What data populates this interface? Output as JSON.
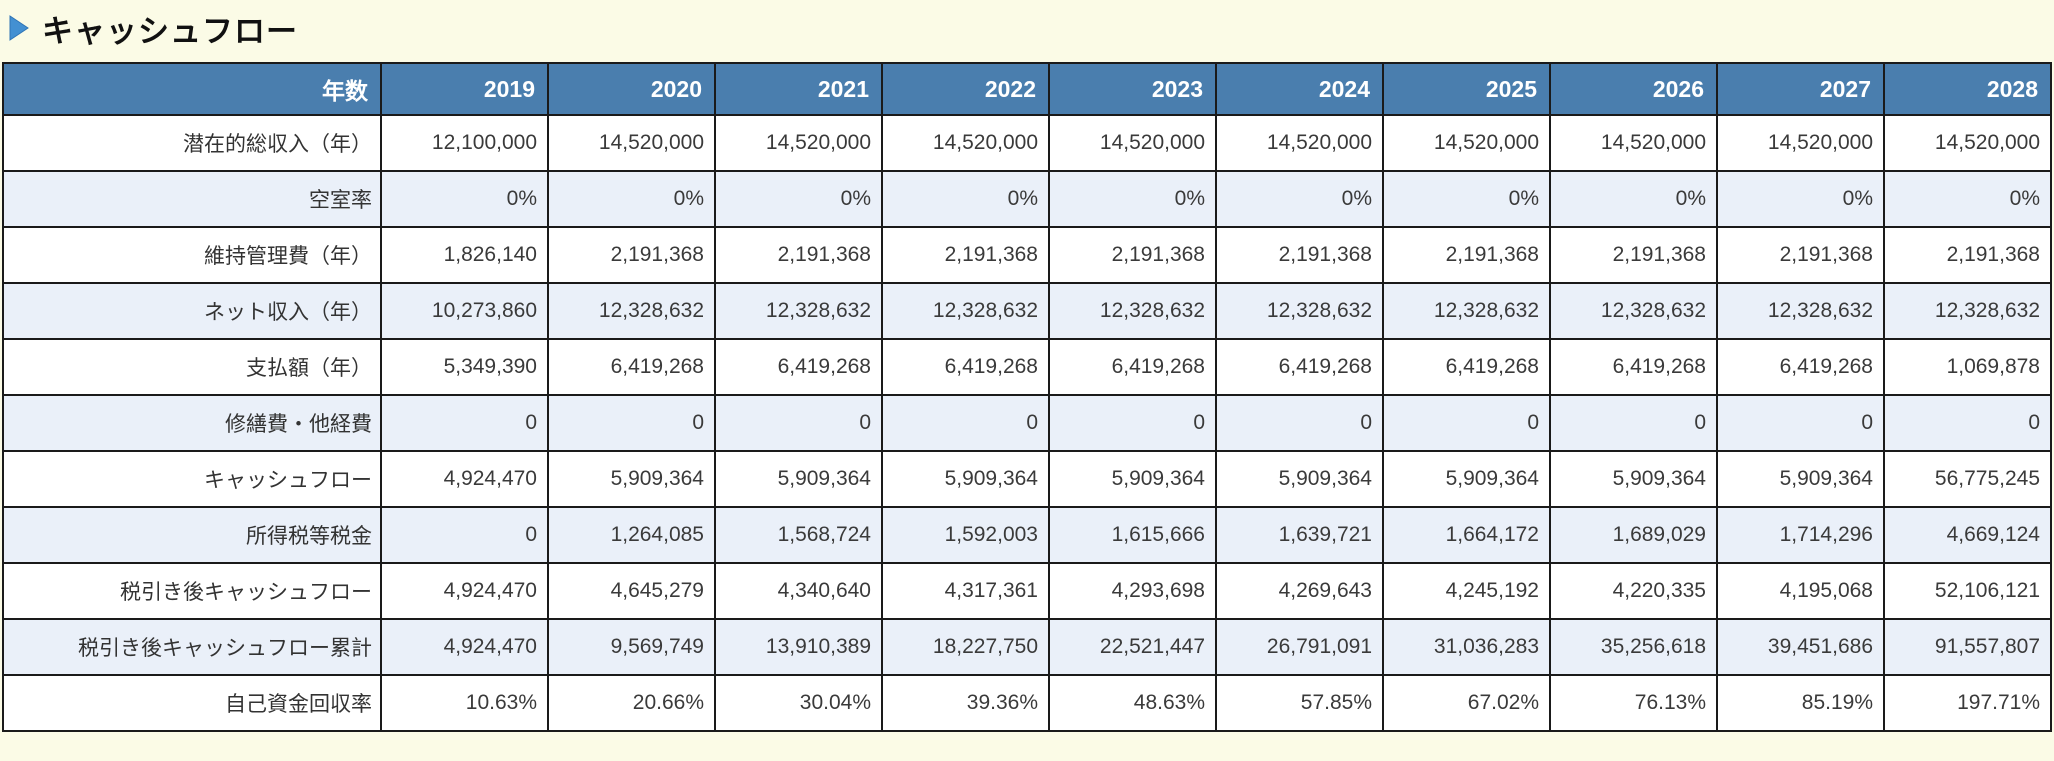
{
  "title": {
    "text": "キャッシュフロー",
    "icon": "blue-right-triangle"
  },
  "theme": {
    "page_background": "#FBFBE6",
    "header_bg": "#4A7EAE",
    "header_text": "#FFFFFF",
    "row_bg": "#FFFFFF",
    "row_alt_bg": "#EAF0F9",
    "border_color": "#1A1A1A",
    "cell_text": "#3A3A3A",
    "title_accent": "#4390D2"
  },
  "table": {
    "corner_header": "年数",
    "columns": [
      "2019",
      "2020",
      "2021",
      "2022",
      "2023",
      "2024",
      "2025",
      "2026",
      "2027",
      "2028"
    ],
    "rows": [
      {
        "label": "潜在的総収入（年）",
        "values": [
          "12,100,000",
          "14,520,000",
          "14,520,000",
          "14,520,000",
          "14,520,000",
          "14,520,000",
          "14,520,000",
          "14,520,000",
          "14,520,000",
          "14,520,000"
        ]
      },
      {
        "label": "空室率",
        "values": [
          "0%",
          "0%",
          "0%",
          "0%",
          "0%",
          "0%",
          "0%",
          "0%",
          "0%",
          "0%"
        ]
      },
      {
        "label": "維持管理費（年）",
        "values": [
          "1,826,140",
          "2,191,368",
          "2,191,368",
          "2,191,368",
          "2,191,368",
          "2,191,368",
          "2,191,368",
          "2,191,368",
          "2,191,368",
          "2,191,368"
        ]
      },
      {
        "label": "ネット収入（年）",
        "values": [
          "10,273,860",
          "12,328,632",
          "12,328,632",
          "12,328,632",
          "12,328,632",
          "12,328,632",
          "12,328,632",
          "12,328,632",
          "12,328,632",
          "12,328,632"
        ]
      },
      {
        "label": "支払額（年）",
        "values": [
          "5,349,390",
          "6,419,268",
          "6,419,268",
          "6,419,268",
          "6,419,268",
          "6,419,268",
          "6,419,268",
          "6,419,268",
          "6,419,268",
          "1,069,878"
        ]
      },
      {
        "label": "修繕費・他経費",
        "values": [
          "0",
          "0",
          "0",
          "0",
          "0",
          "0",
          "0",
          "0",
          "0",
          "0"
        ]
      },
      {
        "label": "キャッシュフロー",
        "values": [
          "4,924,470",
          "5,909,364",
          "5,909,364",
          "5,909,364",
          "5,909,364",
          "5,909,364",
          "5,909,364",
          "5,909,364",
          "5,909,364",
          "56,775,245"
        ]
      },
      {
        "label": "所得税等税金",
        "values": [
          "0",
          "1,264,085",
          "1,568,724",
          "1,592,003",
          "1,615,666",
          "1,639,721",
          "1,664,172",
          "1,689,029",
          "1,714,296",
          "4,669,124"
        ]
      },
      {
        "label": "税引き後キャッシュフロー",
        "values": [
          "4,924,470",
          "4,645,279",
          "4,340,640",
          "4,317,361",
          "4,293,698",
          "4,269,643",
          "4,245,192",
          "4,220,335",
          "4,195,068",
          "52,106,121"
        ]
      },
      {
        "label": "税引き後キャッシュフロー累計",
        "values": [
          "4,924,470",
          "9,569,749",
          "13,910,389",
          "18,227,750",
          "22,521,447",
          "26,791,091",
          "31,036,283",
          "35,256,618",
          "39,451,686",
          "91,557,807"
        ]
      },
      {
        "label": "自己資金回収率",
        "values": [
          "10.63%",
          "20.66%",
          "30.04%",
          "39.36%",
          "48.63%",
          "57.85%",
          "67.02%",
          "76.13%",
          "85.19%",
          "197.71%"
        ]
      }
    ]
  }
}
